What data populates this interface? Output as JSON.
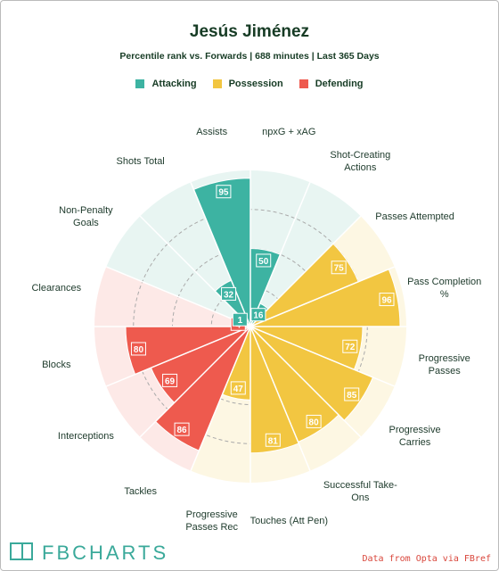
{
  "chart_data": {
    "type": "pizza",
    "title": "Jesús Jiménez",
    "subtitle": "Percentile rank vs. Forwards | 688 minutes | Last 365 Days",
    "categories": [
      "npxG + xAG",
      "Shot-Creating Actions",
      "Passes Attempted",
      "Pass Completion %",
      "Progressive Passes",
      "Progressive Carries",
      "Successful Take-Ons",
      "Touches (Att Pen)",
      "Progressive Passes Rec",
      "Tackles",
      "Interceptions",
      "Blocks",
      "Clearances",
      "Non-Penalty Goals",
      "Shots Total",
      "Assists"
    ],
    "series": [
      {
        "name": "Attacking",
        "color": "#3db3a2",
        "background": "#e8f5f2",
        "values": [
          50,
          16,
          null,
          null,
          null,
          null,
          null,
          null,
          null,
          null,
          null,
          null,
          null,
          1,
          32,
          95
        ]
      },
      {
        "name": "Possession",
        "color": "#f2c641",
        "background": "#fdf7e3",
        "values": [
          null,
          null,
          75,
          96,
          72,
          85,
          80,
          81,
          47,
          null,
          null,
          null,
          null,
          null,
          null,
          null
        ]
      },
      {
        "name": "Defending",
        "color": "#ee5a4e",
        "background": "#fde9e7",
        "values": [
          null,
          null,
          null,
          null,
          null,
          null,
          null,
          null,
          null,
          86,
          69,
          80,
          4,
          null,
          null,
          null
        ]
      }
    ],
    "ylim": [
      0,
      100
    ],
    "yticks": [
      25,
      50,
      75
    ],
    "grid": true,
    "logo": "FBCHARTS",
    "source": "Data from Opta via FBref"
  }
}
